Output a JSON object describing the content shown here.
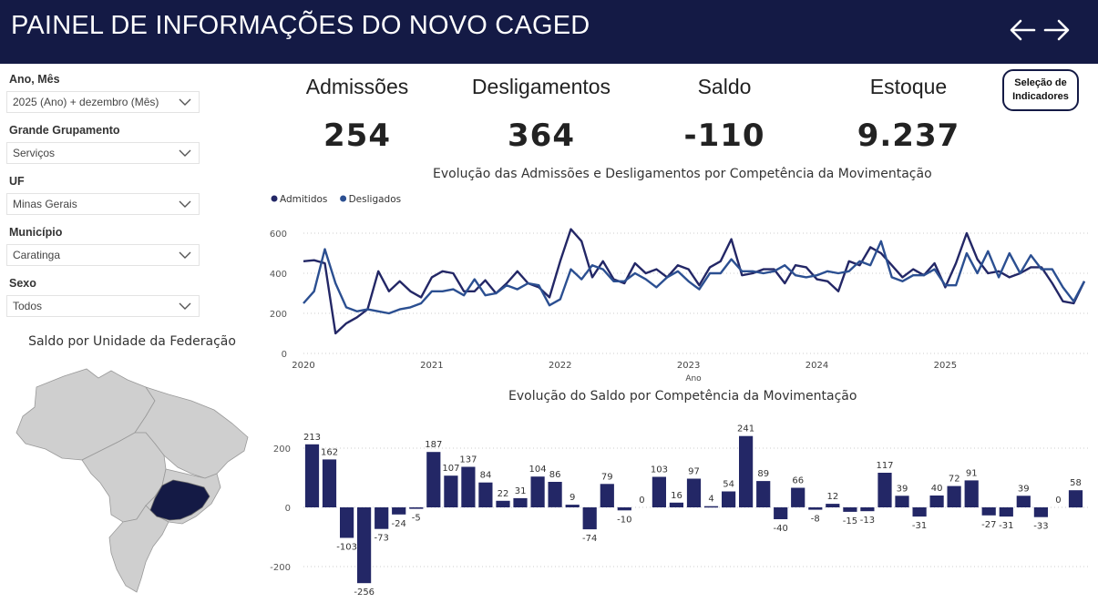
{
  "header": {
    "title": "PAINEL DE INFORMAÇÕES DO NOVO CAGED",
    "back_icon": "arrow-left-icon",
    "forward_icon": "arrow-right-icon"
  },
  "filters": [
    {
      "label": "Ano, Mês",
      "value": "2025 (Ano) + dezembro (Mês)"
    },
    {
      "label": "Grande Grupamento",
      "value": "Serviços"
    },
    {
      "label": "UF",
      "value": "Minas Gerais"
    },
    {
      "label": "Município",
      "value": "Caratinga"
    },
    {
      "label": "Sexo",
      "value": "Todos"
    }
  ],
  "map": {
    "title": "Saldo por Unidade da Federação",
    "highlight_color": "#141a45",
    "base_color": "#cfcfcf"
  },
  "kpis": [
    {
      "label": "Admissões",
      "value": "254"
    },
    {
      "label": "Desligamentos",
      "value": "364"
    },
    {
      "label": "Saldo",
      "value": "-110"
    },
    {
      "label": "Estoque",
      "value": "9.237"
    }
  ],
  "selection_button": "Seleção de\nIndicadores",
  "colors": {
    "admitidos": "#232766",
    "desligados": "#2b4f91",
    "bars": "#232766"
  },
  "chart_data": [
    {
      "type": "line",
      "title": "Evolução das Admissões e Desligamentos por Competência da Movimentação",
      "xlabel": "Ano",
      "ylabel": "",
      "x_ticks": [
        "2020",
        "2021",
        "2022",
        "2023",
        "2024",
        "2025"
      ],
      "y_ticks": [
        0,
        200,
        400,
        600
      ],
      "ylim": [
        0,
        650
      ],
      "legend": "top-left",
      "grid": true,
      "series": [
        {
          "name": "Admitidos",
          "values": [
            460,
            465,
            450,
            100,
            150,
            180,
            220,
            410,
            310,
            360,
            310,
            280,
            380,
            410,
            400,
            310,
            310,
            365,
            300,
            350,
            410,
            350,
            330,
            280,
            460,
            620,
            560,
            380,
            460,
            370,
            350,
            450,
            400,
            420,
            380,
            440,
            420,
            340,
            430,
            460,
            570,
            390,
            400,
            420,
            420,
            350,
            440,
            430,
            370,
            360,
            310,
            460,
            440,
            530,
            500,
            440,
            380,
            420,
            390,
            450,
            330,
            450,
            600,
            470,
            400,
            410,
            380,
            400,
            430,
            430,
            350,
            260,
            250,
            360
          ],
          "x_start": "2020-01"
        },
        {
          "name": "Desligados",
          "values": [
            250,
            310,
            520,
            350,
            230,
            210,
            220,
            210,
            200,
            220,
            230,
            250,
            310,
            310,
            320,
            290,
            370,
            290,
            300,
            340,
            320,
            350,
            340,
            240,
            270,
            420,
            370,
            440,
            420,
            360,
            360,
            400,
            370,
            330,
            380,
            410,
            360,
            320,
            400,
            400,
            470,
            410,
            410,
            400,
            410,
            440,
            390,
            380,
            390,
            410,
            400,
            410,
            460,
            440,
            560,
            380,
            360,
            390,
            390,
            420,
            340,
            340,
            500,
            400,
            510,
            380,
            500,
            400,
            490,
            420,
            420,
            330,
            260,
            360
          ],
          "x_start": "2020-01"
        }
      ]
    },
    {
      "type": "bar",
      "title": "Evolução do Saldo por Competência da Movimentação",
      "y_ticks": [
        -200,
        0,
        200
      ],
      "ylim": [
        -260,
        250
      ],
      "grid": true,
      "values": [
        213,
        162,
        -103,
        -256,
        -73,
        -24,
        -5,
        187,
        107,
        137,
        84,
        22,
        31,
        104,
        86,
        9,
        -74,
        79,
        -10,
        0,
        103,
        16,
        97,
        4,
        54,
        241,
        89,
        -40,
        66,
        -8,
        12,
        -15,
        -13,
        117,
        39,
        -31,
        40,
        72,
        91,
        -27,
        -31,
        39,
        -33,
        0,
        58
      ]
    }
  ]
}
